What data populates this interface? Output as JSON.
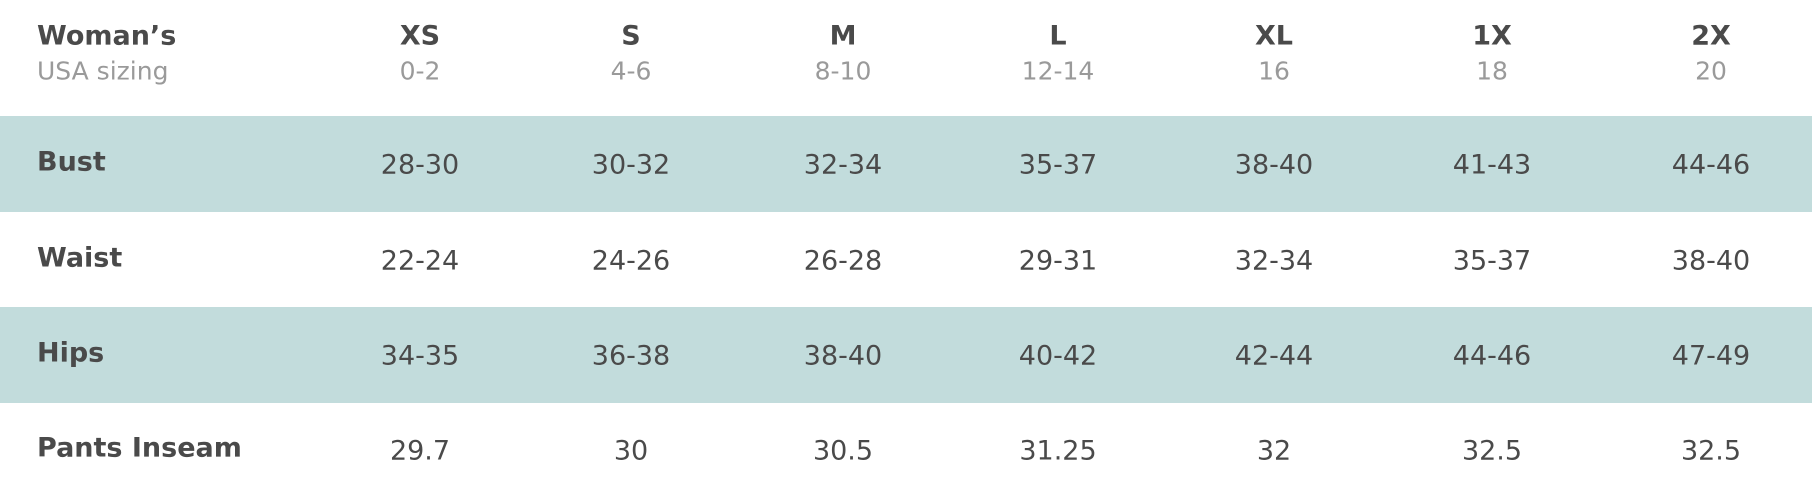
{
  "table": {
    "header": {
      "title": "Woman’s",
      "subtitle": "USA sizing"
    },
    "columns": [
      {
        "size": "XS",
        "range": "0-2"
      },
      {
        "size": "S",
        "range": "4-6"
      },
      {
        "size": "M",
        "range": "8-10"
      },
      {
        "size": "L",
        "range": "12-14"
      },
      {
        "size": "XL",
        "range": "16"
      },
      {
        "size": "1X",
        "range": "18"
      },
      {
        "size": "2X",
        "range": "20"
      }
    ],
    "rows": [
      {
        "label": "Bust",
        "values": [
          "28-30",
          "30-32",
          "32-34",
          "35-37",
          "38-40",
          "41-43",
          "44-46"
        ]
      },
      {
        "label": "Waist",
        "values": [
          "22-24",
          "24-26",
          "26-28",
          "29-31",
          "32-34",
          "35-37",
          "38-40"
        ]
      },
      {
        "label": "Hips",
        "values": [
          "34-35",
          "36-38",
          "38-40",
          "40-42",
          "42-44",
          "44-46",
          "47-49"
        ]
      },
      {
        "label": "Pants Inseam",
        "values": [
          "29.7",
          "30",
          "30.5",
          "31.25",
          "32",
          "32.5",
          "32.5"
        ]
      }
    ]
  }
}
